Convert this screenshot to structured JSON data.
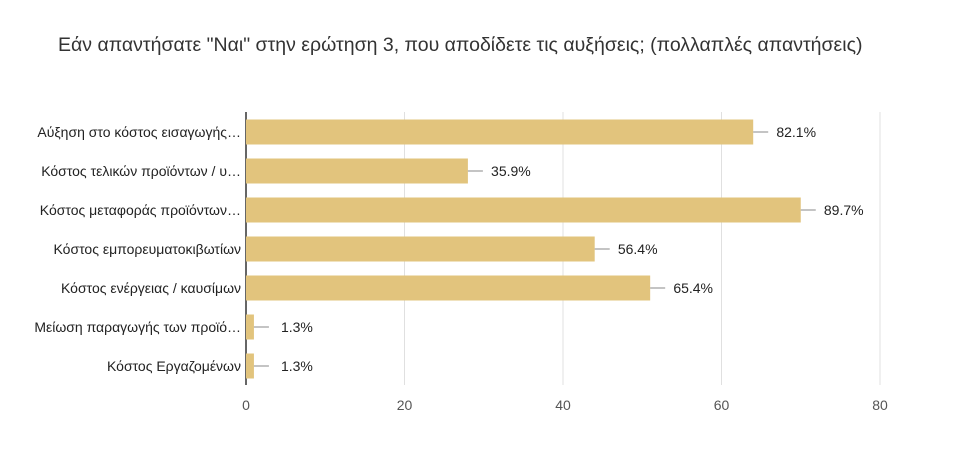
{
  "chart_data": {
    "type": "bar",
    "orientation": "horizontal",
    "title": "Εάν απαντήσατε \"Ναι\" στην ερώτηση 3, που αποδίδετε τις αυξήσεις; (πολλαπλές απαντήσεις)",
    "xlabel": "",
    "ylabel": "",
    "categories": [
      "Αύξηση στο κόστος εισαγωγής…",
      "Κόστος τελικών προϊόντων / υ…",
      "Κόστος μεταφοράς προϊόντων…",
      "Κόστος εμπορευματοκιβωτίων",
      "Κόστος ενέργειας / καυσίμων",
      "Μείωση παραγωγής των προϊό…",
      "Κόστος Εργαζομένων"
    ],
    "values": [
      64,
      28,
      70,
      44,
      51,
      1,
      1
    ],
    "value_labels": [
      "82.1%",
      "35.9%",
      "89.7%",
      "56.4%",
      "65.4%",
      "1.3%",
      "1.3%"
    ],
    "xlim": [
      0,
      80
    ],
    "xticks": [
      0,
      20,
      40,
      60,
      80
    ],
    "grid": true,
    "error_bars": true,
    "colors": {
      "bar": "#e2c47d",
      "grid": "#e0e0e0",
      "axis": "#333333",
      "error": "#888888"
    }
  }
}
